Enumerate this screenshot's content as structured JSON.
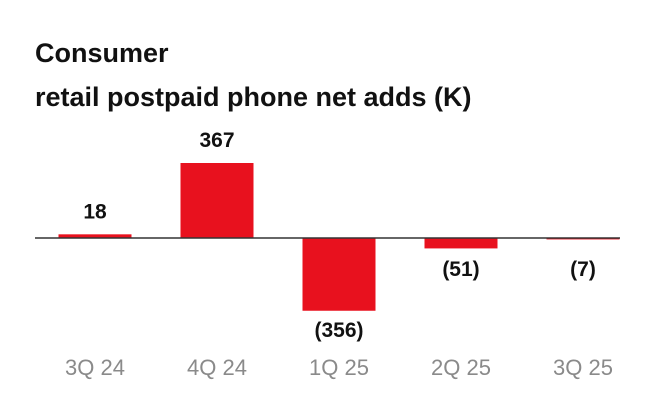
{
  "chart_data": {
    "type": "bar",
    "title": [
      "Consumer",
      "retail postpaid phone net adds (K)"
    ],
    "categories": [
      "3Q 24",
      "4Q 24",
      "1Q 25",
      "2Q 25",
      "3Q 25"
    ],
    "values": [
      18,
      367,
      -356,
      -51,
      -7
    ],
    "value_labels": [
      "18",
      "367",
      "(356)",
      "(51)",
      "(7)"
    ],
    "color": "#e8111e"
  }
}
